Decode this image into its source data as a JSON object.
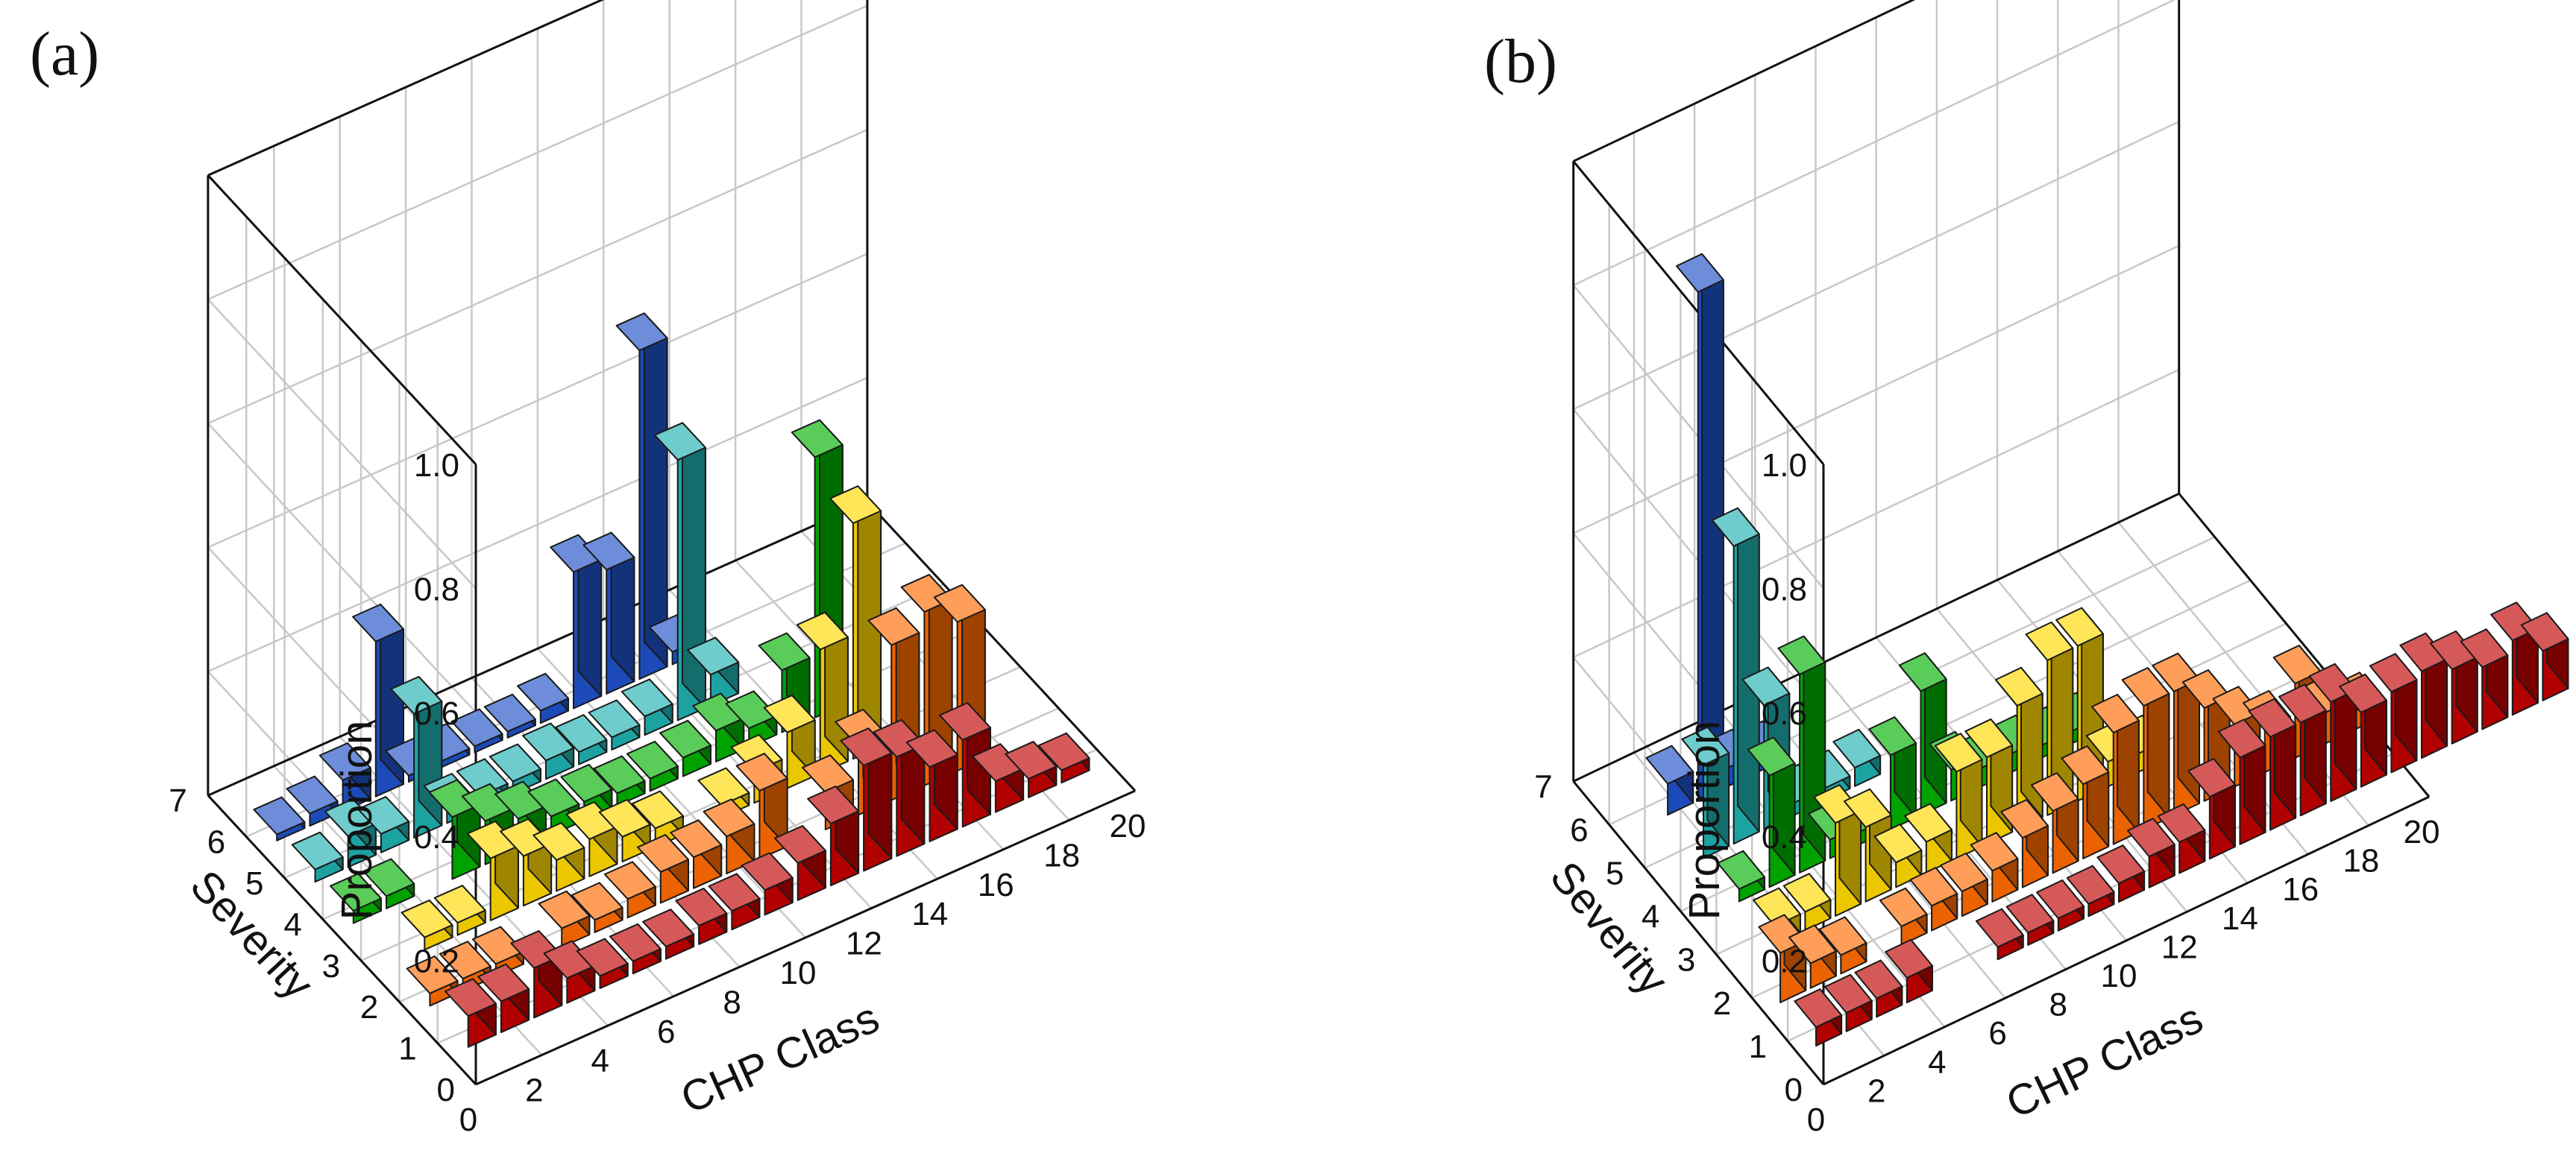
{
  "chart_data": [
    {
      "type": "bar3d",
      "panel_label": "(a)",
      "xlabel": "CHP Class",
      "ylabel": "Severity",
      "zlabel": "Proportion",
      "xlim": [
        0,
        20
      ],
      "ylim": [
        0,
        7
      ],
      "zlim": [
        0,
        1
      ],
      "x_ticks": [
        "0",
        "2",
        "4",
        "6",
        "8",
        "10",
        "12",
        "14",
        "16",
        "18",
        "20"
      ],
      "y_ticks": [
        "0",
        "1",
        "2",
        "3",
        "4",
        "5",
        "6",
        "7"
      ],
      "z_ticks": [
        "0.2",
        "0.4",
        "0.6",
        "0.8",
        "1.0"
      ],
      "grid": true,
      "series": [
        {
          "name": "Severity 1",
          "y": 1,
          "color": "#c00000",
          "x": [
            1,
            2,
            3,
            4,
            5,
            6,
            7,
            8,
            9,
            10,
            11,
            12,
            13,
            14,
            15,
            16,
            17,
            18,
            19
          ],
          "values": [
            0.05,
            0.05,
            0.08,
            0.04,
            0.02,
            0.02,
            0.02,
            0.03,
            0.03,
            0.04,
            0.06,
            0.1,
            0.17,
            0.16,
            0.12,
            0.14,
            0.05,
            0.03,
            0.02
          ]
        },
        {
          "name": "Severity 2",
          "y": 2,
          "color": "#ff6a00",
          "x": [
            1,
            2,
            3,
            5,
            6,
            7,
            8,
            9,
            10,
            11,
            13,
            14,
            15,
            16,
            17
          ],
          "values": [
            0.02,
            0.02,
            0.02,
            0.03,
            0.02,
            0.03,
            0.05,
            0.05,
            0.06,
            0.11,
            0.06,
            0.11,
            0.25,
            0.28,
            0.24
          ]
        },
        {
          "name": "Severity 3",
          "y": 3,
          "color": "#ffd800",
          "x": [
            2,
            3,
            4,
            5,
            6,
            7,
            8,
            9,
            11,
            12,
            13,
            14,
            15
          ],
          "values": [
            0.02,
            0.02,
            0.1,
            0.08,
            0.05,
            0.06,
            0.04,
            0.03,
            0.02,
            0.05,
            0.09,
            0.2,
            0.38
          ]
        },
        {
          "name": "Severity 4",
          "y": 4,
          "color": "#00b000",
          "x": [
            1,
            2,
            4,
            5,
            6,
            7,
            8,
            9,
            10,
            11,
            12,
            13,
            14,
            15
          ],
          "values": [
            0.02,
            0.02,
            0.1,
            0.07,
            0.05,
            0.03,
            0.03,
            0.02,
            0.02,
            0.03,
            0.05,
            0.03,
            0.1,
            0.42
          ]
        },
        {
          "name": "Severity 5",
          "y": 5,
          "color": "#20b0b0",
          "x": [
            1,
            2,
            3,
            4,
            5,
            6,
            7,
            8,
            9,
            10,
            11,
            12,
            13
          ],
          "values": [
            0.02,
            0.05,
            0.03,
            0.2,
            0.02,
            0.02,
            0.02,
            0.03,
            0.02,
            0.02,
            0.03,
            0.42,
            0.05
          ]
        },
        {
          "name": "Severity 6",
          "y": 6,
          "color": "#1e50c8",
          "x": [
            1,
            2,
            3,
            4,
            5,
            6,
            7,
            8,
            9,
            10,
            11,
            12,
            13
          ],
          "values": [
            0.01,
            0.02,
            0.05,
            0.25,
            0.01,
            0.01,
            0.01,
            0.01,
            0.02,
            0.22,
            0.2,
            0.53,
            0.02
          ]
        }
      ]
    },
    {
      "type": "bar3d",
      "panel_label": "(b)",
      "xlabel": "CHP Class",
      "ylabel": "Severity",
      "zlabel": "Proportion",
      "xlim": [
        0,
        20
      ],
      "ylim": [
        0,
        7
      ],
      "zlim": [
        0,
        1
      ],
      "x_ticks": [
        "0",
        "2",
        "4",
        "6",
        "8",
        "10",
        "12",
        "14",
        "16",
        "18",
        "20"
      ],
      "y_ticks": [
        "0",
        "1",
        "2",
        "3",
        "4",
        "5",
        "6",
        "7"
      ],
      "z_ticks": [
        "0.2",
        "0.4",
        "0.6",
        "0.8",
        "1.0"
      ],
      "grid": true,
      "series": [
        {
          "name": "Severity 1",
          "y": 1,
          "color": "#c00000",
          "x": [
            1,
            2,
            3,
            4,
            7,
            8,
            9,
            10,
            11,
            12,
            13,
            14,
            15,
            16,
            17,
            18,
            19,
            20,
            21,
            22,
            23,
            24,
            25
          ],
          "values": [
            0.03,
            0.03,
            0.03,
            0.04,
            0.02,
            0.02,
            0.02,
            0.02,
            0.03,
            0.05,
            0.05,
            0.1,
            0.14,
            0.15,
            0.15,
            0.16,
            0.12,
            0.13,
            0.14,
            0.12,
            0.1,
            0.12,
            0.08
          ]
        },
        {
          "name": "Severity 2",
          "y": 2,
          "color": "#ff6a00",
          "x": [
            1,
            2,
            3,
            5,
            6,
            7,
            8,
            9,
            10,
            11,
            12,
            13,
            14,
            15,
            16,
            17,
            18,
            19,
            20
          ],
          "values": [
            0.08,
            0.04,
            0.03,
            0.03,
            0.04,
            0.04,
            0.05,
            0.08,
            0.1,
            0.12,
            0.18,
            0.2,
            0.2,
            0.15,
            0.1,
            0.07,
            0.12,
            0.05,
            0.03
          ]
        },
        {
          "name": "Severity 3",
          "y": 3,
          "color": "#ffd800",
          "x": [
            2,
            3,
            4,
            5,
            6,
            7,
            8,
            9,
            10,
            11,
            12,
            13,
            14
          ],
          "values": [
            0.03,
            0.03,
            0.15,
            0.12,
            0.04,
            0.05,
            0.14,
            0.14,
            0.2,
            0.25,
            0.25,
            0.04,
            0.03
          ]
        },
        {
          "name": "Severity 4",
          "y": 4,
          "color": "#00b000",
          "x": [
            2,
            3,
            4,
            5,
            6,
            7,
            8,
            9,
            10,
            11,
            12,
            13
          ],
          "values": [
            0.02,
            0.18,
            0.32,
            0.03,
            0.02,
            0.12,
            0.2,
            0.05,
            0.03,
            0.03,
            0.02,
            0.02
          ]
        },
        {
          "name": "Severity 5",
          "y": 5,
          "color": "#20b0b0",
          "x": [
            2,
            3,
            4,
            5,
            6,
            7
          ],
          "values": [
            0.15,
            0.48,
            0.2,
            0.02,
            0.02,
            0.03
          ]
        },
        {
          "name": "Severity 6",
          "y": 6,
          "color": "#1e50c8",
          "x": [
            2,
            3,
            4,
            5
          ],
          "values": [
            0.05,
            0.82,
            0.03,
            0.02
          ]
        }
      ]
    }
  ]
}
